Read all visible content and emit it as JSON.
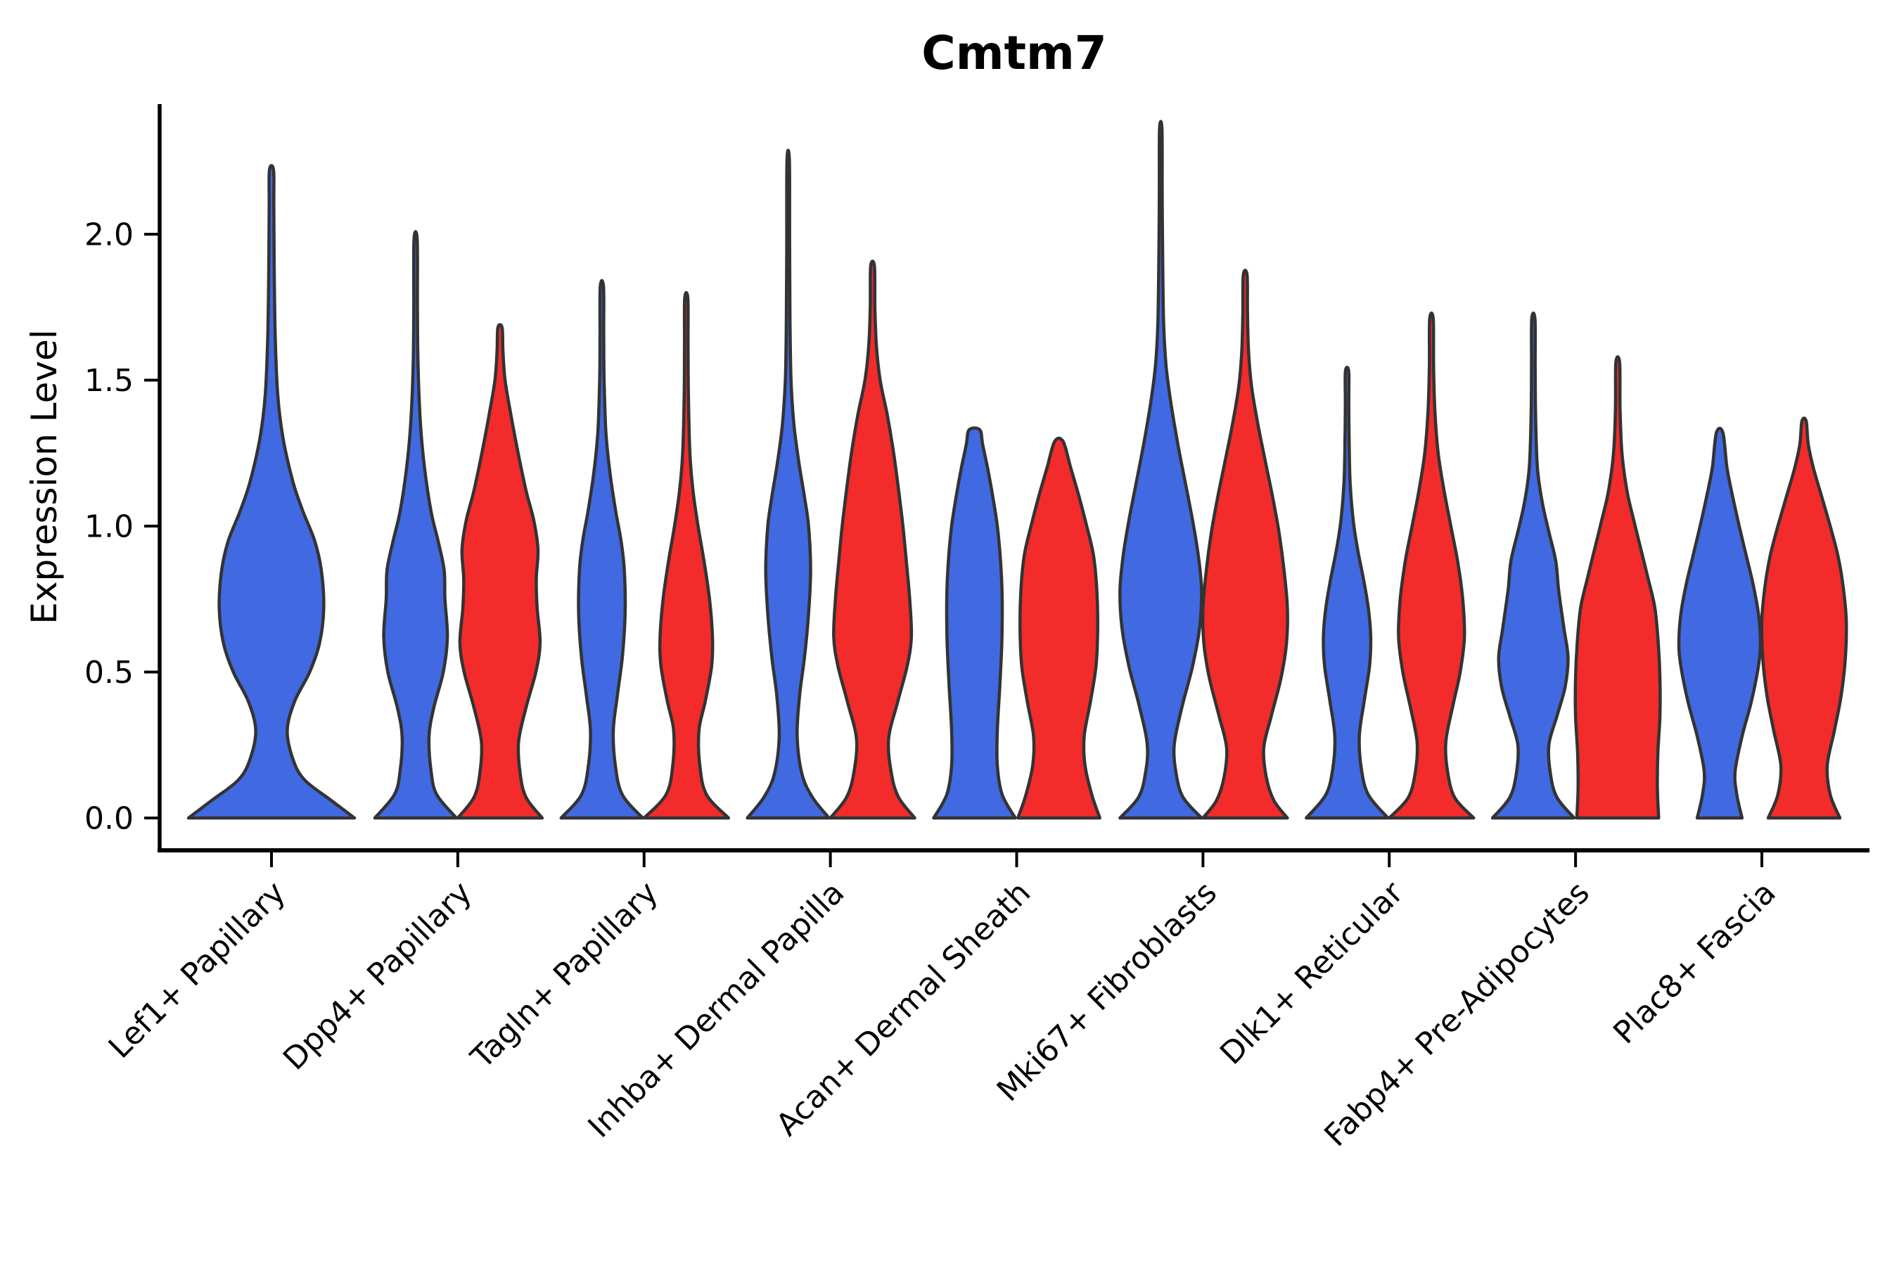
{
  "title": "Cmtm7",
  "axes": {
    "ylabel": "Expression Level",
    "yticks": [
      {
        "value": 0.0,
        "label": "0.0"
      },
      {
        "value": 0.5,
        "label": "0.5"
      },
      {
        "value": 1.0,
        "label": "1.0"
      },
      {
        "value": 1.5,
        "label": "1.5"
      },
      {
        "value": 2.0,
        "label": "2.0"
      }
    ]
  },
  "chart_data": {
    "type": "violin",
    "title": "Cmtm7",
    "xlabel": "",
    "ylabel": "Expression Level",
    "ylim": [
      0,
      2.45
    ],
    "grid": false,
    "legend": "none",
    "colors": {
      "blue": "#4169E1",
      "red": "#F32B2B",
      "outline": "#333333"
    },
    "categories": [
      "Lef1+ Papillary",
      "Dpp4+ Papillary",
      "Tagln+ Papillary",
      "Inhba+ Dermal Papilla",
      "Acan+ Dermal Sheath",
      "Mki67+ Fibroblasts",
      "Dlk1+ Reticular",
      "Fabp4+ Pre-Adipocytes",
      "Plac8+ Fascia"
    ],
    "violins": [
      {
        "category": "Lef1+ Papillary",
        "group": "blue",
        "pos": "full",
        "max_expression": 2.22,
        "profile": [
          [
            0,
            1.0
          ],
          [
            0.06,
            0.72
          ],
          [
            0.13,
            0.4
          ],
          [
            0.2,
            0.26
          ],
          [
            0.3,
            0.19
          ],
          [
            0.4,
            0.28
          ],
          [
            0.5,
            0.46
          ],
          [
            0.6,
            0.58
          ],
          [
            0.72,
            0.63
          ],
          [
            0.85,
            0.6
          ],
          [
            0.95,
            0.52
          ],
          [
            1.05,
            0.38
          ],
          [
            1.15,
            0.26
          ],
          [
            1.3,
            0.14
          ],
          [
            1.45,
            0.075
          ],
          [
            1.65,
            0.045
          ],
          [
            1.9,
            0.032
          ],
          [
            2.1,
            0.028
          ],
          [
            2.22,
            0.025
          ]
        ]
      },
      {
        "category": "Dpp4+ Papillary",
        "group": "blue",
        "pos": "left",
        "max_expression": 1.98,
        "profile": [
          [
            0,
            1.0
          ],
          [
            0.08,
            0.52
          ],
          [
            0.16,
            0.38
          ],
          [
            0.28,
            0.33
          ],
          [
            0.38,
            0.45
          ],
          [
            0.5,
            0.68
          ],
          [
            0.62,
            0.78
          ],
          [
            0.75,
            0.72
          ],
          [
            0.85,
            0.7
          ],
          [
            0.95,
            0.55
          ],
          [
            1.05,
            0.38
          ],
          [
            1.2,
            0.22
          ],
          [
            1.35,
            0.12
          ],
          [
            1.55,
            0.06
          ],
          [
            1.75,
            0.045
          ],
          [
            1.98,
            0.04
          ]
        ]
      },
      {
        "category": "Dpp4+ Papillary",
        "group": "red",
        "pos": "right",
        "max_expression": 1.68,
        "profile": [
          [
            0,
            1.0
          ],
          [
            0.07,
            0.62
          ],
          [
            0.15,
            0.48
          ],
          [
            0.26,
            0.44
          ],
          [
            0.38,
            0.62
          ],
          [
            0.5,
            0.85
          ],
          [
            0.6,
            0.95
          ],
          [
            0.72,
            0.88
          ],
          [
            0.82,
            0.86
          ],
          [
            0.92,
            0.9
          ],
          [
            1.02,
            0.8
          ],
          [
            1.12,
            0.62
          ],
          [
            1.25,
            0.43
          ],
          [
            1.38,
            0.26
          ],
          [
            1.5,
            0.12
          ],
          [
            1.6,
            0.07
          ],
          [
            1.68,
            0.05
          ]
        ]
      },
      {
        "category": "Tagln+ Papillary",
        "group": "blue",
        "pos": "left",
        "max_expression": 1.82,
        "profile": [
          [
            0,
            1.0
          ],
          [
            0.08,
            0.5
          ],
          [
            0.18,
            0.33
          ],
          [
            0.3,
            0.28
          ],
          [
            0.42,
            0.38
          ],
          [
            0.55,
            0.5
          ],
          [
            0.7,
            0.57
          ],
          [
            0.85,
            0.55
          ],
          [
            0.95,
            0.47
          ],
          [
            1.05,
            0.34
          ],
          [
            1.18,
            0.2
          ],
          [
            1.32,
            0.1
          ],
          [
            1.5,
            0.055
          ],
          [
            1.65,
            0.045
          ],
          [
            1.82,
            0.04
          ]
        ]
      },
      {
        "category": "Tagln+ Papillary",
        "group": "red",
        "pos": "right",
        "max_expression": 1.78,
        "profile": [
          [
            0,
            1.0
          ],
          [
            0.08,
            0.48
          ],
          [
            0.18,
            0.32
          ],
          [
            0.3,
            0.3
          ],
          [
            0.4,
            0.45
          ],
          [
            0.52,
            0.6
          ],
          [
            0.62,
            0.62
          ],
          [
            0.75,
            0.55
          ],
          [
            0.88,
            0.42
          ],
          [
            1.0,
            0.28
          ],
          [
            1.12,
            0.16
          ],
          [
            1.25,
            0.085
          ],
          [
            1.45,
            0.05
          ],
          [
            1.62,
            0.042
          ],
          [
            1.78,
            0.038
          ]
        ]
      },
      {
        "category": "Inhba+ Dermal Papilla",
        "group": "blue",
        "pos": "left",
        "max_expression": 2.25,
        "profile": [
          [
            0,
            1.0
          ],
          [
            0.07,
            0.6
          ],
          [
            0.15,
            0.34
          ],
          [
            0.28,
            0.22
          ],
          [
            0.42,
            0.28
          ],
          [
            0.55,
            0.4
          ],
          [
            0.7,
            0.5
          ],
          [
            0.85,
            0.55
          ],
          [
            1.0,
            0.5
          ],
          [
            1.1,
            0.4
          ],
          [
            1.22,
            0.26
          ],
          [
            1.35,
            0.14
          ],
          [
            1.5,
            0.07
          ],
          [
            1.7,
            0.045
          ],
          [
            1.95,
            0.035
          ],
          [
            2.25,
            0.03
          ]
        ]
      },
      {
        "category": "Inhba+ Dermal Papilla",
        "group": "red",
        "pos": "right",
        "max_expression": 1.89,
        "profile": [
          [
            0,
            1.0
          ],
          [
            0.07,
            0.62
          ],
          [
            0.15,
            0.45
          ],
          [
            0.27,
            0.38
          ],
          [
            0.4,
            0.6
          ],
          [
            0.52,
            0.82
          ],
          [
            0.62,
            0.92
          ],
          [
            0.75,
            0.88
          ],
          [
            0.88,
            0.8
          ],
          [
            1.0,
            0.72
          ],
          [
            1.12,
            0.62
          ],
          [
            1.25,
            0.5
          ],
          [
            1.38,
            0.35
          ],
          [
            1.5,
            0.18
          ],
          [
            1.62,
            0.09
          ],
          [
            1.75,
            0.055
          ],
          [
            1.89,
            0.045
          ]
        ]
      },
      {
        "category": "Acan+ Dermal Sheath",
        "group": "blue",
        "pos": "left",
        "max_expression": 1.33,
        "profile": [
          [
            0,
            1.0
          ],
          [
            0.08,
            0.68
          ],
          [
            0.18,
            0.56
          ],
          [
            0.3,
            0.56
          ],
          [
            0.45,
            0.62
          ],
          [
            0.6,
            0.67
          ],
          [
            0.75,
            0.68
          ],
          [
            0.88,
            0.64
          ],
          [
            1.0,
            0.56
          ],
          [
            1.1,
            0.45
          ],
          [
            1.2,
            0.32
          ],
          [
            1.28,
            0.2
          ],
          [
            1.33,
            0.13
          ]
        ]
      },
      {
        "category": "Acan+ Dermal Sheath",
        "group": "red",
        "pos": "right",
        "max_expression": 1.29,
        "profile": [
          [
            0,
            0.97
          ],
          [
            0.08,
            0.78
          ],
          [
            0.18,
            0.62
          ],
          [
            0.28,
            0.6
          ],
          [
            0.4,
            0.75
          ],
          [
            0.52,
            0.88
          ],
          [
            0.65,
            0.92
          ],
          [
            0.78,
            0.9
          ],
          [
            0.9,
            0.82
          ],
          [
            1.0,
            0.66
          ],
          [
            1.1,
            0.48
          ],
          [
            1.2,
            0.28
          ],
          [
            1.29,
            0.1
          ]
        ]
      },
      {
        "category": "Mki67+ Fibroblasts",
        "group": "blue",
        "pos": "left",
        "max_expression": 2.36,
        "profile": [
          [
            0,
            1.0
          ],
          [
            0.07,
            0.55
          ],
          [
            0.15,
            0.38
          ],
          [
            0.25,
            0.33
          ],
          [
            0.38,
            0.52
          ],
          [
            0.52,
            0.78
          ],
          [
            0.65,
            0.95
          ],
          [
            0.78,
            1.0
          ],
          [
            0.9,
            0.92
          ],
          [
            1.02,
            0.78
          ],
          [
            1.15,
            0.6
          ],
          [
            1.28,
            0.42
          ],
          [
            1.42,
            0.25
          ],
          [
            1.55,
            0.13
          ],
          [
            1.7,
            0.07
          ],
          [
            1.95,
            0.045
          ],
          [
            2.15,
            0.035
          ],
          [
            2.36,
            0.03
          ]
        ]
      },
      {
        "category": "Mki67+ Fibroblasts",
        "group": "red",
        "pos": "right",
        "max_expression": 1.86,
        "profile": [
          [
            0,
            1.0
          ],
          [
            0.06,
            0.68
          ],
          [
            0.14,
            0.5
          ],
          [
            0.24,
            0.44
          ],
          [
            0.35,
            0.62
          ],
          [
            0.48,
            0.85
          ],
          [
            0.6,
            0.98
          ],
          [
            0.72,
            1.0
          ],
          [
            0.85,
            0.92
          ],
          [
            0.98,
            0.8
          ],
          [
            1.1,
            0.65
          ],
          [
            1.22,
            0.48
          ],
          [
            1.35,
            0.3
          ],
          [
            1.48,
            0.15
          ],
          [
            1.6,
            0.08
          ],
          [
            1.73,
            0.055
          ],
          [
            1.86,
            0.045
          ]
        ]
      },
      {
        "category": "Dlk1+ Reticular",
        "group": "blue",
        "pos": "left",
        "max_expression": 1.53,
        "profile": [
          [
            0,
            1.0
          ],
          [
            0.08,
            0.52
          ],
          [
            0.17,
            0.35
          ],
          [
            0.28,
            0.3
          ],
          [
            0.4,
            0.42
          ],
          [
            0.52,
            0.55
          ],
          [
            0.62,
            0.58
          ],
          [
            0.72,
            0.52
          ],
          [
            0.82,
            0.4
          ],
          [
            0.92,
            0.26
          ],
          [
            1.02,
            0.15
          ],
          [
            1.15,
            0.075
          ],
          [
            1.3,
            0.05
          ],
          [
            1.42,
            0.042
          ],
          [
            1.53,
            0.04
          ]
        ]
      },
      {
        "category": "Dlk1+ Reticular",
        "group": "red",
        "pos": "right",
        "max_expression": 1.71,
        "profile": [
          [
            0,
            1.0
          ],
          [
            0.07,
            0.55
          ],
          [
            0.16,
            0.38
          ],
          [
            0.26,
            0.34
          ],
          [
            0.38,
            0.5
          ],
          [
            0.5,
            0.68
          ],
          [
            0.62,
            0.78
          ],
          [
            0.75,
            0.74
          ],
          [
            0.88,
            0.62
          ],
          [
            1.0,
            0.46
          ],
          [
            1.12,
            0.3
          ],
          [
            1.25,
            0.16
          ],
          [
            1.4,
            0.08
          ],
          [
            1.55,
            0.05
          ],
          [
            1.71,
            0.042
          ]
        ]
      },
      {
        "category": "Fabp4+ Pre-Adipocytes",
        "group": "blue",
        "pos": "left",
        "max_expression": 1.71,
        "profile": [
          [
            0,
            1.0
          ],
          [
            0.07,
            0.58
          ],
          [
            0.15,
            0.42
          ],
          [
            0.25,
            0.38
          ],
          [
            0.35,
            0.58
          ],
          [
            0.45,
            0.78
          ],
          [
            0.55,
            0.85
          ],
          [
            0.65,
            0.75
          ],
          [
            0.78,
            0.62
          ],
          [
            0.88,
            0.55
          ],
          [
            0.98,
            0.38
          ],
          [
            1.08,
            0.22
          ],
          [
            1.2,
            0.1
          ],
          [
            1.38,
            0.055
          ],
          [
            1.55,
            0.045
          ],
          [
            1.71,
            0.04
          ]
        ]
      },
      {
        "category": "Fabp4+ Pre-Adipocytes",
        "group": "red",
        "pos": "right",
        "max_expression": 1.56,
        "profile": [
          [
            0,
            0.97
          ],
          [
            0.1,
            0.94
          ],
          [
            0.22,
            0.95
          ],
          [
            0.35,
            1.0
          ],
          [
            0.48,
            1.0
          ],
          [
            0.6,
            0.96
          ],
          [
            0.72,
            0.88
          ],
          [
            0.82,
            0.72
          ],
          [
            0.92,
            0.55
          ],
          [
            1.02,
            0.38
          ],
          [
            1.12,
            0.22
          ],
          [
            1.25,
            0.1
          ],
          [
            1.4,
            0.055
          ],
          [
            1.56,
            0.045
          ]
        ]
      },
      {
        "category": "Plac8+ Fascia",
        "group": "blue",
        "pos": "left",
        "max_expression": 1.32,
        "profile": [
          [
            0,
            0.55
          ],
          [
            0.08,
            0.42
          ],
          [
            0.16,
            0.38
          ],
          [
            0.28,
            0.55
          ],
          [
            0.4,
            0.78
          ],
          [
            0.52,
            0.95
          ],
          [
            0.6,
            1.0
          ],
          [
            0.7,
            0.95
          ],
          [
            0.8,
            0.82
          ],
          [
            0.9,
            0.65
          ],
          [
            1.0,
            0.48
          ],
          [
            1.1,
            0.32
          ],
          [
            1.2,
            0.18
          ],
          [
            1.32,
            0.08
          ]
        ]
      },
      {
        "category": "Plac8+ Fascia",
        "group": "red",
        "pos": "right",
        "max_expression": 1.36,
        "profile": [
          [
            0,
            0.85
          ],
          [
            0.08,
            0.62
          ],
          [
            0.18,
            0.55
          ],
          [
            0.3,
            0.72
          ],
          [
            0.42,
            0.88
          ],
          [
            0.55,
            0.98
          ],
          [
            0.68,
            1.0
          ],
          [
            0.8,
            0.92
          ],
          [
            0.9,
            0.8
          ],
          [
            1.0,
            0.62
          ],
          [
            1.1,
            0.42
          ],
          [
            1.2,
            0.22
          ],
          [
            1.28,
            0.1
          ],
          [
            1.36,
            0.05
          ]
        ]
      }
    ]
  }
}
